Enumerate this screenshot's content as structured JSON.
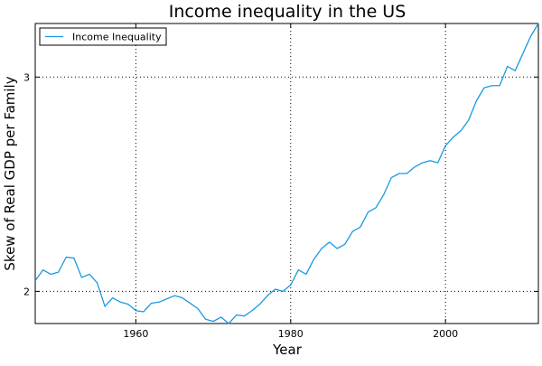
{
  "chart_data": {
    "type": "line",
    "title": "Income inequality in the US",
    "xlabel": "Year",
    "ylabel": "Skew of Real GDP per Family",
    "xlim": [
      1947,
      2012
    ],
    "ylim": [
      1.85,
      3.25
    ],
    "xticks": [
      1960,
      1980,
      2000
    ],
    "yticks": [
      2,
      3
    ],
    "grid": true,
    "legend_position": "top-left",
    "series": [
      {
        "name": "Income Inequality",
        "color": "#199ae0",
        "x": [
          1947,
          1948,
          1949,
          1950,
          1951,
          1952,
          1953,
          1954,
          1955,
          1956,
          1957,
          1958,
          1959,
          1960,
          1961,
          1962,
          1963,
          1964,
          1965,
          1966,
          1967,
          1968,
          1969,
          1970,
          1971,
          1972,
          1973,
          1974,
          1975,
          1976,
          1977,
          1978,
          1979,
          1980,
          1981,
          1982,
          1983,
          1984,
          1985,
          1986,
          1987,
          1988,
          1989,
          1990,
          1991,
          1992,
          1993,
          1994,
          1995,
          1996,
          1997,
          1998,
          1999,
          2000,
          2001,
          2002,
          2003,
          2004,
          2005,
          2006,
          2007,
          2008,
          2009,
          2010,
          2011,
          2012
        ],
        "y": [
          2.05,
          2.1,
          2.08,
          2.09,
          2.16,
          2.155,
          2.065,
          2.08,
          2.04,
          1.93,
          1.97,
          1.95,
          1.94,
          1.91,
          1.905,
          1.945,
          1.95,
          1.965,
          1.98,
          1.97,
          1.945,
          1.92,
          1.87,
          1.86,
          1.88,
          1.85,
          1.89,
          1.885,
          1.91,
          1.94,
          1.98,
          2.01,
          2.0,
          2.03,
          2.1,
          2.08,
          2.15,
          2.2,
          2.23,
          2.2,
          2.22,
          2.28,
          2.3,
          2.37,
          2.39,
          2.45,
          2.53,
          2.55,
          2.55,
          2.58,
          2.6,
          2.61,
          2.6,
          2.68,
          2.72,
          2.75,
          2.8,
          2.89,
          2.95,
          2.96,
          2.96,
          3.05,
          3.03,
          3.11,
          3.19,
          3.25
        ]
      }
    ]
  }
}
